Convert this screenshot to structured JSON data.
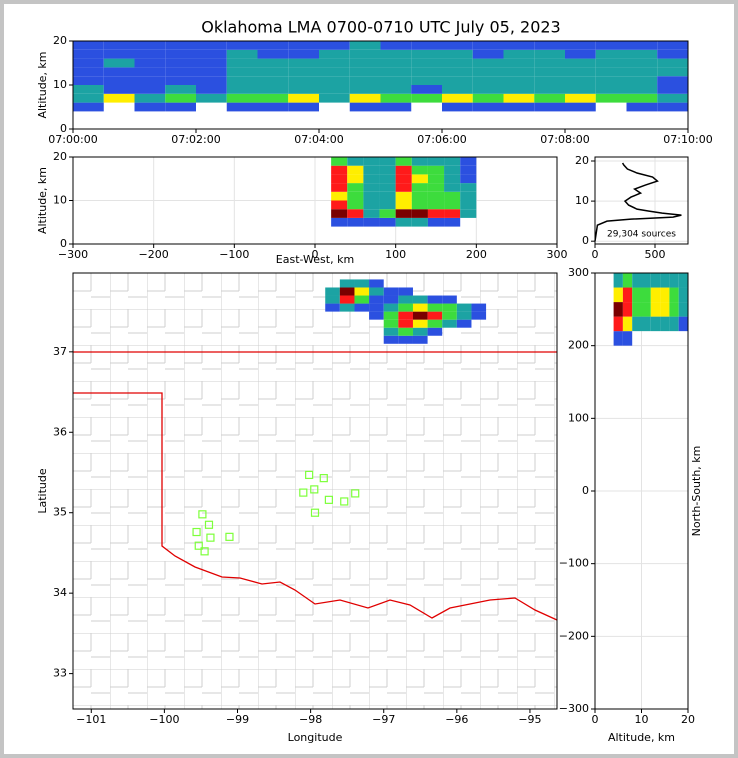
{
  "title": "Oklahoma LMA 0700-0710 UTC July 05, 2023",
  "colormap": [
    "#2b50e0",
    "#1ca3a3",
    "#3ddc3d",
    "#ffee00",
    "#ff1a1a",
    "#7a0000"
  ],
  "chart_data": [
    {
      "type": "heatmap",
      "ylabel": "Altitude, km",
      "xlim": [
        0,
        600
      ],
      "ylim": [
        0,
        20
      ],
      "xticks": [
        {
          "value": 0,
          "label": "07:00:00"
        },
        {
          "value": 120,
          "label": "07:02:00"
        },
        {
          "value": 240,
          "label": "07:04:00"
        },
        {
          "value": 360,
          "label": "07:06:00"
        },
        {
          "value": 480,
          "label": "07:08:00"
        },
        {
          "value": 600,
          "label": "07:10:00"
        }
      ],
      "yticks": [
        0,
        10,
        20
      ],
      "grid": false,
      "x_bins": [
        0,
        30,
        60,
        90,
        120,
        150,
        180,
        210,
        240,
        270,
        300,
        330,
        360,
        390,
        420,
        450,
        480,
        510,
        540,
        570,
        600
      ],
      "y_bins": [
        4,
        6,
        8,
        10,
        12,
        14,
        16,
        18,
        20
      ],
      "z": [
        [
          1,
          0,
          1,
          1,
          0,
          1,
          1,
          1,
          0,
          1,
          1,
          0,
          1,
          1,
          1,
          1,
          1,
          0,
          1,
          1
        ],
        [
          2,
          4,
          2,
          3,
          2,
          3,
          3,
          4,
          2,
          4,
          3,
          3,
          4,
          3,
          4,
          3,
          4,
          3,
          3,
          2
        ],
        [
          2,
          1,
          1,
          2,
          1,
          2,
          2,
          2,
          2,
          2,
          2,
          1,
          2,
          2,
          2,
          2,
          2,
          2,
          2,
          1
        ],
        [
          1,
          1,
          1,
          1,
          1,
          2,
          2,
          2,
          2,
          2,
          2,
          2,
          2,
          2,
          2,
          2,
          2,
          2,
          2,
          1
        ],
        [
          1,
          1,
          1,
          1,
          1,
          2,
          2,
          2,
          2,
          2,
          2,
          2,
          2,
          2,
          2,
          2,
          2,
          2,
          2,
          2
        ],
        [
          1,
          2,
          1,
          1,
          1,
          2,
          2,
          2,
          2,
          2,
          2,
          2,
          2,
          2,
          2,
          2,
          2,
          2,
          2,
          2
        ],
        [
          1,
          1,
          1,
          1,
          1,
          2,
          1,
          1,
          2,
          2,
          2,
          2,
          2,
          1,
          2,
          2,
          1,
          2,
          2,
          1
        ],
        [
          1,
          1,
          1,
          1,
          1,
          1,
          1,
          1,
          1,
          2,
          1,
          1,
          1,
          1,
          1,
          1,
          1,
          1,
          1,
          1
        ]
      ]
    },
    {
      "type": "heatmap",
      "xlabel": "East-West, km",
      "ylabel": "Altitude, km",
      "xlim": [
        -300,
        300
      ],
      "ylim": [
        0,
        20
      ],
      "xticks": [
        {
          "value": -300,
          "label": "−300"
        },
        {
          "value": -200,
          "label": "−200"
        },
        {
          "value": -100,
          "label": "−100"
        },
        0,
        100,
        200,
        300
      ],
      "yticks": [
        0,
        10,
        20
      ],
      "grid": true,
      "x_bins": [
        20,
        40,
        60,
        80,
        100,
        120,
        140,
        160,
        180,
        200
      ],
      "y_bins": [
        4,
        6,
        8,
        10,
        12,
        14,
        16,
        18,
        20
      ],
      "z": [
        [
          1,
          1,
          1,
          1,
          2,
          2,
          1,
          1,
          0
        ],
        [
          6,
          5,
          2,
          3,
          6,
          6,
          5,
          5,
          2
        ],
        [
          5,
          3,
          2,
          2,
          4,
          3,
          3,
          3,
          2
        ],
        [
          4,
          3,
          2,
          2,
          4,
          3,
          3,
          3,
          2
        ],
        [
          5,
          3,
          2,
          2,
          5,
          3,
          3,
          2,
          2
        ],
        [
          5,
          4,
          2,
          2,
          5,
          4,
          3,
          2,
          1
        ],
        [
          5,
          4,
          2,
          2,
          5,
          3,
          3,
          2,
          1
        ],
        [
          3,
          2,
          2,
          2,
          3,
          2,
          2,
          2,
          1
        ]
      ]
    },
    {
      "type": "line",
      "xlim": [
        0,
        775
      ],
      "ylim": [
        -0.7,
        21
      ],
      "xticks": [
        0,
        500
      ],
      "yticks": [
        0,
        10,
        20
      ],
      "grid": true,
      "color": "#000000",
      "annotation": "29,304 sources",
      "altitude": [
        0,
        4,
        5,
        5.5,
        6,
        6.5,
        7,
        7.5,
        8,
        9,
        10,
        11,
        12,
        13,
        14,
        15,
        16,
        17,
        18,
        19,
        19.5
      ],
      "values": [
        0,
        20,
        100,
        300,
        650,
        720,
        560,
        450,
        350,
        280,
        250,
        300,
        380,
        330,
        420,
        520,
        480,
        350,
        270,
        240,
        230
      ]
    },
    {
      "type": "map",
      "xlabel": "Longitude",
      "ylabel": "Latitude",
      "xlim": [
        -101.25,
        -94.63
      ],
      "ylim": [
        32.56,
        37.98
      ],
      "xticks": [
        {
          "value": -101,
          "label": "−101"
        },
        {
          "value": -100,
          "label": "−100"
        },
        {
          "value": -99,
          "label": "−99"
        },
        {
          "value": -98,
          "label": "−98"
        },
        {
          "value": -97,
          "label": "−97"
        },
        {
          "value": -96,
          "label": "−96"
        },
        {
          "value": -95,
          "label": "−95"
        }
      ],
      "yticks": [
        33,
        34,
        35,
        36,
        37
      ],
      "grid": false,
      "x_bins": [
        -97.8,
        -97.6,
        -97.4,
        -97.2,
        -97.0,
        -96.8,
        -96.6,
        -96.4,
        -96.2,
        -96.0,
        -95.8,
        -95.6
      ],
      "y_bins": [
        37.1,
        37.2,
        37.3,
        37.4,
        37.5,
        37.6,
        37.7,
        37.8,
        37.9
      ],
      "z": [
        [
          0,
          0,
          0,
          0,
          1,
          1,
          1,
          0,
          0,
          0,
          0
        ],
        [
          0,
          0,
          0,
          0,
          2,
          3,
          2,
          1,
          0,
          0,
          0
        ],
        [
          0,
          0,
          0,
          0,
          3,
          5,
          4,
          3,
          2,
          1,
          0
        ],
        [
          0,
          0,
          0,
          1,
          3,
          5,
          6,
          5,
          3,
          2,
          1
        ],
        [
          1,
          2,
          1,
          1,
          2,
          3,
          4,
          3,
          3,
          2,
          1
        ],
        [
          2,
          5,
          3,
          1,
          1,
          2,
          2,
          1,
          1,
          0,
          0
        ],
        [
          2,
          6,
          4,
          2,
          1,
          1,
          0,
          0,
          0,
          0,
          0
        ],
        [
          0,
          2,
          2,
          1,
          0,
          0,
          0,
          0,
          0,
          0,
          0
        ]
      ],
      "stations": {
        "color": "#7dff3a",
        "lon": [
          -99.56,
          -99.48,
          -99.39,
          -99.37,
          -99.53,
          -99.45,
          -99.11,
          -98.02,
          -97.82,
          -98.1,
          -97.95,
          -97.75,
          -97.94,
          -97.54,
          -97.39
        ],
        "lat": [
          34.76,
          34.98,
          34.85,
          34.69,
          34.59,
          34.52,
          34.7,
          35.47,
          35.43,
          35.25,
          35.29,
          35.16,
          35.0,
          35.14,
          35.24
        ]
      }
    },
    {
      "type": "heatmap",
      "xlabel": "Altitude, km",
      "ylabel": "North-South, km",
      "xlim": [
        0,
        20
      ],
      "ylim": [
        -300,
        300
      ],
      "xticks": [
        0,
        10,
        20
      ],
      "yticks": [
        300,
        200,
        100,
        0,
        {
          "value": -100,
          "label": "−100"
        },
        {
          "value": -200,
          "label": "−200"
        },
        {
          "value": -300,
          "label": "−300"
        }
      ],
      "grid": true,
      "x_bins": [
        4,
        6,
        8,
        10,
        12,
        14,
        16,
        18,
        20
      ],
      "y_bins": [
        200,
        220,
        240,
        260,
        280,
        300
      ],
      "z": [
        [
          1,
          1,
          0,
          0,
          0,
          0,
          0,
          0
        ],
        [
          5,
          4,
          2,
          2,
          2,
          2,
          2,
          1
        ],
        [
          6,
          5,
          3,
          3,
          4,
          4,
          3,
          2
        ],
        [
          4,
          5,
          3,
          3,
          4,
          4,
          3,
          2
        ],
        [
          2,
          3,
          2,
          2,
          2,
          2,
          2,
          2
        ]
      ]
    }
  ]
}
